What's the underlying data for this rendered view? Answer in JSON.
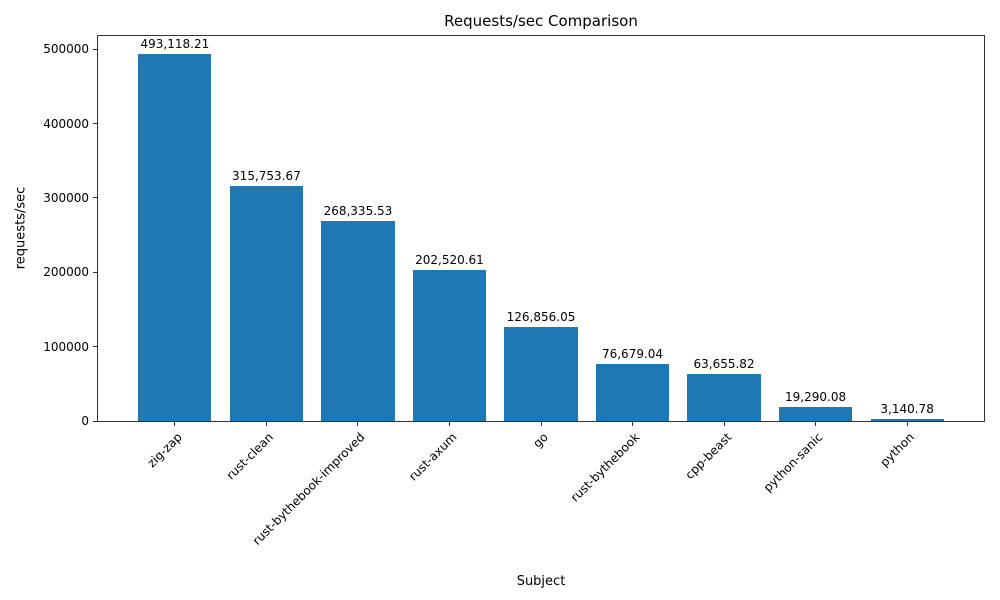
{
  "chart_data": {
    "type": "bar",
    "title": "Requests/sec Comparison",
    "xlabel": "Subject",
    "ylabel": "requests/sec",
    "categories": [
      "zig-zap",
      "rust-clean",
      "rust-bythebook-improved",
      "rust-axum",
      "go",
      "rust-bythebook",
      "cpp-beast",
      "python-sanic",
      "python"
    ],
    "values": [
      493118.21,
      315753.67,
      268335.53,
      202520.61,
      126856.05,
      76679.04,
      63655.82,
      19290.08,
      3140.78
    ],
    "value_labels": [
      "493,118.21",
      "315,753.67",
      "268,335.53",
      "202,520.61",
      "126,856.05",
      "76,679.04",
      "63,655.82",
      "19,290.08",
      "3,140.78"
    ],
    "bar_color": "#1f77b4",
    "ylim": [
      0,
      517774
    ],
    "yticks": [
      0,
      100000,
      200000,
      300000,
      400000,
      500000
    ],
    "ytick_labels": [
      "0",
      "100000",
      "200000",
      "300000",
      "400000",
      "500000"
    ],
    "bar_width_fraction": 0.8,
    "grid": false,
    "legend": "none"
  }
}
